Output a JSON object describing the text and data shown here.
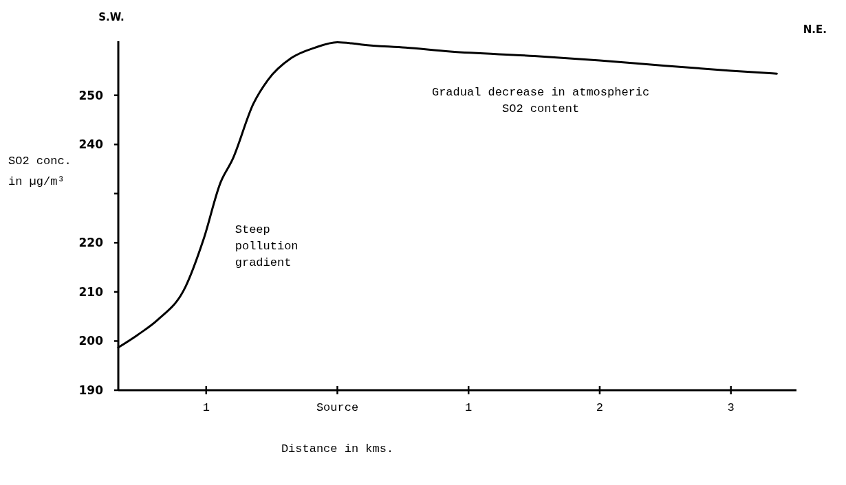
{
  "chart_data": {
    "type": "line",
    "xlabel": "Distance in kms.",
    "ylabel": "SO2 conc. in µg/m³",
    "x": [
      -1.67,
      -1.52,
      -1.37,
      -1.16,
      -1.02,
      -0.89,
      -0.8,
      -0.64,
      -0.53,
      -0.35,
      -0.17,
      0,
      0.13,
      0.19,
      0.52,
      0.86,
      1.5,
      2,
      2.5,
      3,
      3.35
    ],
    "series": [
      {
        "color": "#000000",
        "values": [
          198.7,
          201.3,
          204.3,
          210.9,
          220.7,
          232.3,
          236.9,
          248.3,
          253.1,
          257.6,
          259.7,
          260.8,
          260.5,
          260.3,
          259.7,
          258.9,
          258,
          257.1,
          256,
          255,
          254.4
        ]
      }
    ],
    "xlim": [
      -1.67,
      3.5
    ],
    "xticks": [
      {
        "value": -1,
        "label": "1"
      },
      {
        "value": 0,
        "label": "Source"
      },
      {
        "value": 1,
        "label": "1"
      },
      2,
      3
    ],
    "ylim": [
      190,
      261
    ],
    "yticks": [
      190,
      200,
      210,
      220,
      {
        "value": 230,
        "label": null
      },
      240,
      250
    ],
    "annotations": [
      "S.W.",
      "N.E.",
      "Steep pollution gradient",
      "Gradual decrease in atmospheric SO2 content"
    ],
    "marker": "none",
    "line_style": "solid",
    "grid": false
  }
}
